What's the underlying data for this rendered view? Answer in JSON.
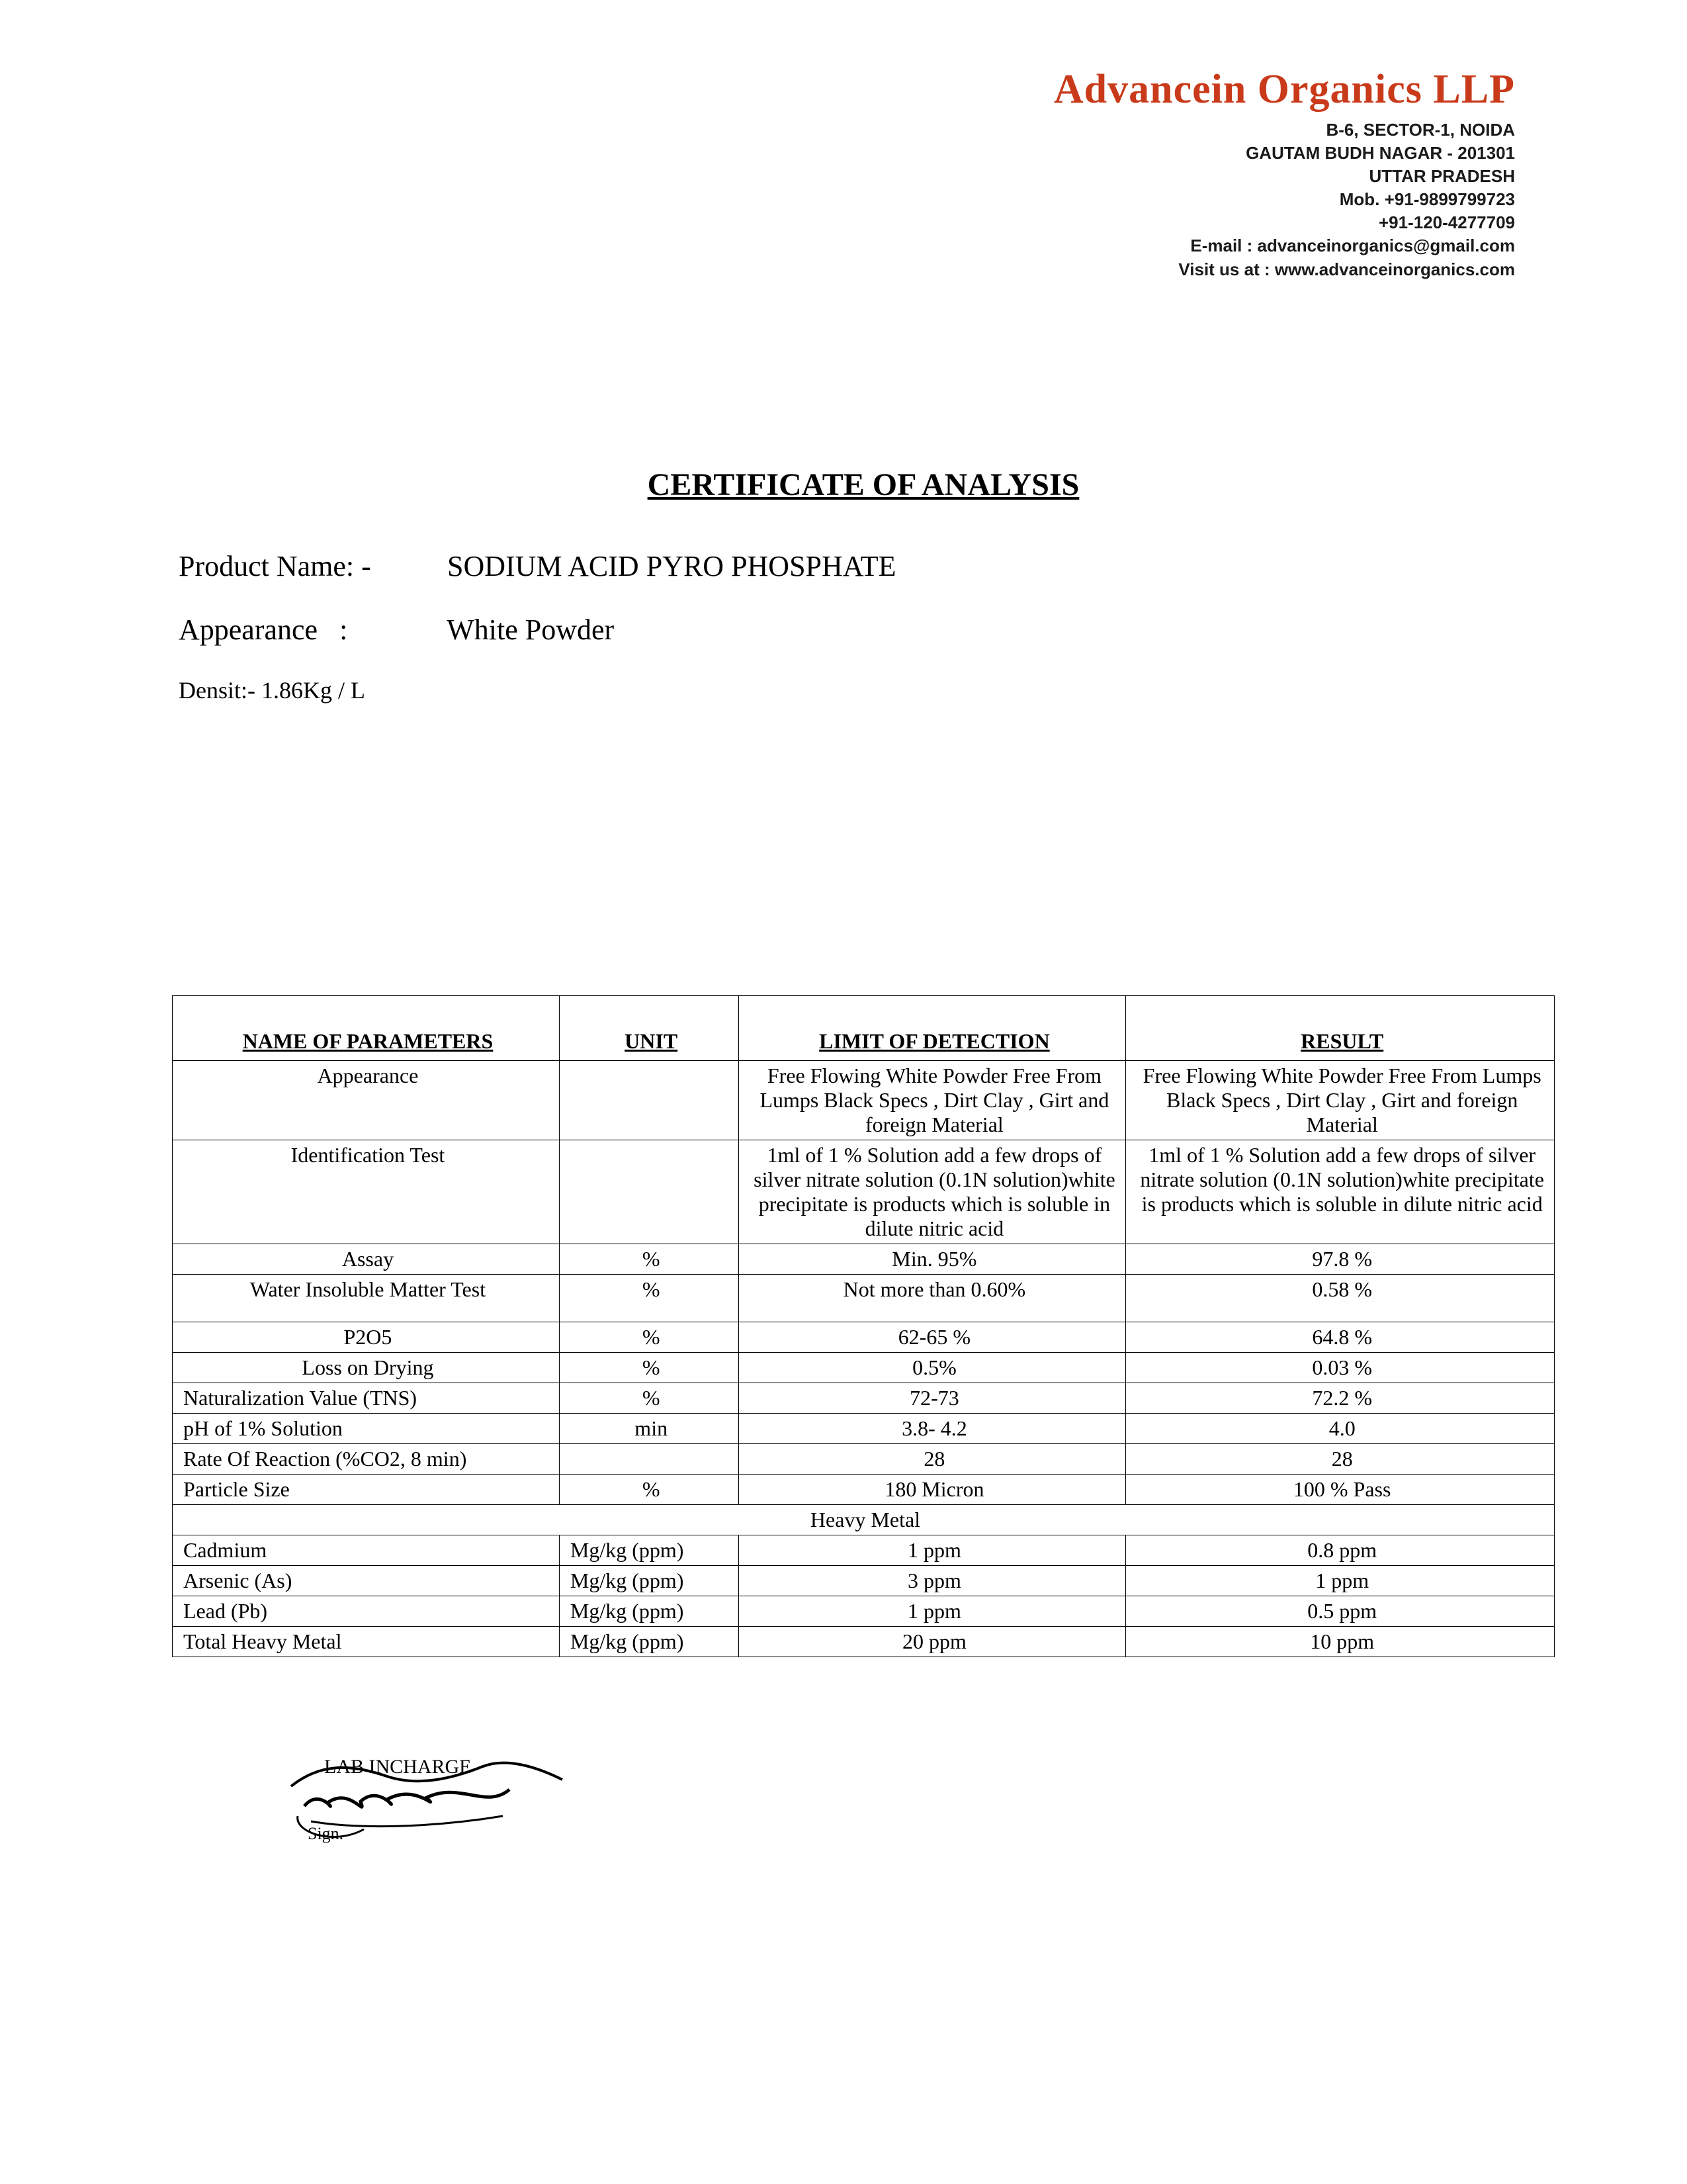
{
  "letterhead": {
    "company": "Advancein Organics LLP",
    "company_color": "#c93a1a",
    "address1": "B-6, SECTOR-1, NOIDA",
    "address2": "GAUTAM BUDH NAGAR - 201301",
    "address3": "UTTAR PRADESH",
    "mobile": "Mob. +91-9899799723",
    "phone": "+91-120-4277709",
    "email": "E-mail : advanceinorganics@gmail.com",
    "website": "Visit us at : www.advanceinorganics.com"
  },
  "title": "CERTIFICATE OF ANALYSIS",
  "product": {
    "name_label": "Product Name: -",
    "name": "SODIUM ACID PYRO PHOSPHATE",
    "appearance_label": "Appearance   :",
    "appearance": "White Powder",
    "density_label": "Densit:-",
    "density": "1.86Kg / L"
  },
  "table": {
    "headers": {
      "param": "NAME OF PARAMETERS",
      "unit": "UNIT",
      "limit": "LIMIT OF DETECTION",
      "result": "RESULT"
    },
    "rows": [
      {
        "param": "Appearance",
        "param_align": "center",
        "unit": "",
        "limit": "Free Flowing White Powder Free From Lumps Black Specs , Dirt Clay , Girt and foreign Material",
        "limit_align": "center",
        "result": "Free Flowing White Powder Free From Lumps Black Specs , Dirt Clay , Girt and foreign Material",
        "result_align": "center"
      },
      {
        "param": "Identification Test",
        "param_align": "center",
        "unit": "",
        "limit": "1ml of 1 % Solution add a few drops of silver nitrate solution (0.1N solution)white precipitate is products which is soluble in dilute  nitric acid",
        "limit_align": "center",
        "result": "1ml of 1 % Solution add a  few drops of silver nitrate solution (0.1N solution)white precipitate is products which is soluble in dilute nitric acid",
        "result_align": "center"
      },
      {
        "param": "Assay",
        "param_align": "center",
        "unit": "%",
        "unit_align": "center",
        "limit": "Min. 95%",
        "limit_align": "center",
        "result": "97.8   %",
        "result_align": "center"
      },
      {
        "param": "Water Insoluble Matter Test",
        "param_align": "center",
        "unit": "%",
        "unit_align": "center",
        "limit": "Not more than 0.60%",
        "limit_align": "center",
        "result": "0.58   %",
        "result_align": "center",
        "bottom_pad": true
      },
      {
        "param": "P2O5",
        "param_align": "center",
        "unit": "%",
        "unit_align": "center",
        "limit": "62-65 %",
        "limit_align": "center",
        "result": "64.8 %",
        "result_align": "center"
      },
      {
        "param": "Loss on Drying",
        "param_align": "center",
        "unit": "%",
        "unit_align": "center",
        "limit": "0.5%",
        "limit_align": "center",
        "result": "0.03 %",
        "result_align": "center"
      },
      {
        "param": "Naturalization Value (TNS)",
        "param_align": "left",
        "unit": "%",
        "unit_align": "center",
        "limit": "72-73",
        "limit_align": "center",
        "result": "72.2 %",
        "result_align": "center"
      },
      {
        "param": "pH of 1% Solution",
        "param_align": "left",
        "unit": "min",
        "unit_align": "center",
        "limit": "3.8- 4.2",
        "limit_align": "center",
        "result": "4.0",
        "result_align": "center"
      },
      {
        "param": "Rate Of Reaction (%CO2, 8 min)",
        "param_align": "left",
        "unit": "",
        "limit": "28",
        "limit_align": "center",
        "result": "28",
        "result_align": "center"
      },
      {
        "param": "Particle   Size",
        "param_align": "left",
        "unit": "%",
        "unit_align": "center",
        "limit": "180  Micron",
        "limit_align": "center",
        "result": "100 % Pass",
        "result_align": "center"
      }
    ],
    "section_header": "Heavy Metal",
    "heavy_metal_rows": [
      {
        "param": "Cadmium",
        "unit": "Mg/kg (ppm)",
        "limit": "1 ppm",
        "result": "0.8 ppm"
      },
      {
        "param": "Arsenic (As)",
        "unit": "Mg/kg (ppm)",
        "limit": "3 ppm",
        "result": "1 ppm"
      },
      {
        "param": "Lead  (Pb)",
        "unit": "Mg/kg (ppm)",
        "limit": "1 ppm",
        "result": "0.5 ppm"
      },
      {
        "param": "Total Heavy Metal",
        "unit": "Mg/kg (ppm)",
        "limit": "20 ppm",
        "result": "10 ppm"
      }
    ]
  },
  "signature": {
    "title": "LAB INCHARGE",
    "sign_label": "Sign."
  },
  "style": {
    "page_bg": "#ffffff",
    "text_color": "#000000",
    "border_color": "#000000",
    "title_fontsize": 48,
    "body_fontsize": 32
  }
}
